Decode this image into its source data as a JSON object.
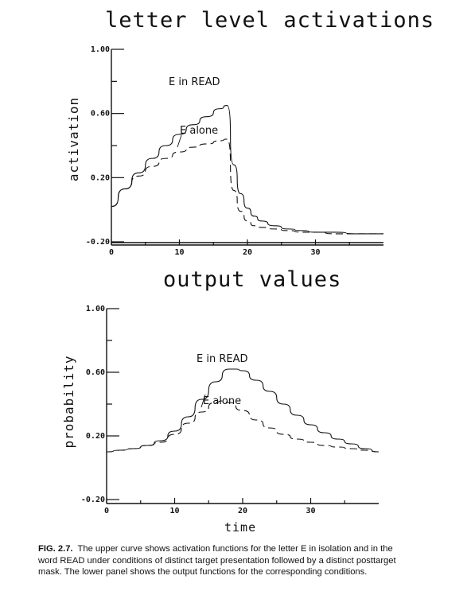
{
  "chart_data": [
    {
      "type": "line",
      "title": "letter level activations",
      "ylabel": "activation",
      "xlabel": "",
      "ylim": [
        -0.2,
        1.0
      ],
      "xlim": [
        0,
        40
      ],
      "yticks": [
        -0.2,
        0.2,
        0.6,
        1.0
      ],
      "ytick_labels": [
        "-0.20",
        "0.20",
        "0.60",
        "1.00"
      ],
      "xticks": [
        0,
        10,
        20,
        30
      ],
      "xtick_labels": [
        "0",
        "10",
        "20",
        "30"
      ],
      "series": [
        {
          "name": "E in READ",
          "style": "solid",
          "x": [
            0,
            2,
            4,
            6,
            8,
            10,
            12,
            14,
            16,
            17,
            18,
            19,
            20,
            21,
            22,
            24,
            26,
            28,
            30,
            33,
            36,
            40
          ],
          "y": [
            0.02,
            0.13,
            0.23,
            0.32,
            0.4,
            0.47,
            0.53,
            0.58,
            0.63,
            0.65,
            0.28,
            0.1,
            0.01,
            -0.04,
            -0.07,
            -0.1,
            -0.12,
            -0.13,
            -0.14,
            -0.14,
            -0.15,
            -0.15
          ]
        },
        {
          "name": "E alone",
          "style": "dashed",
          "x": [
            0,
            2,
            4,
            6,
            8,
            10,
            12,
            14,
            16,
            17,
            18,
            19,
            20,
            21,
            22,
            24,
            26,
            28,
            30,
            33,
            36,
            40
          ],
          "y": [
            0.02,
            0.13,
            0.21,
            0.27,
            0.32,
            0.36,
            0.39,
            0.41,
            0.43,
            0.44,
            0.12,
            -0.01,
            -0.07,
            -0.1,
            -0.11,
            -0.12,
            -0.13,
            -0.14,
            -0.14,
            -0.15,
            -0.15,
            -0.15
          ]
        }
      ]
    },
    {
      "type": "line",
      "title": "output values",
      "ylabel": "probability",
      "xlabel": "time",
      "ylim": [
        -0.2,
        1.0
      ],
      "xlim": [
        0,
        40
      ],
      "yticks": [
        -0.2,
        0.2,
        0.6,
        1.0
      ],
      "ytick_labels": [
        "-0.20",
        "0.20",
        "0.60",
        "1.00"
      ],
      "xticks": [
        0,
        10,
        20,
        30
      ],
      "xtick_labels": [
        "0",
        "10",
        "20",
        "30"
      ],
      "series": [
        {
          "name": "E in READ",
          "style": "solid",
          "x": [
            0,
            2,
            4,
            6,
            8,
            10,
            12,
            14,
            16,
            18,
            19,
            20,
            22,
            24,
            26,
            28,
            30,
            32,
            34,
            36,
            38,
            40
          ],
          "y": [
            0.1,
            0.11,
            0.12,
            0.14,
            0.17,
            0.23,
            0.32,
            0.43,
            0.54,
            0.62,
            0.62,
            0.61,
            0.55,
            0.48,
            0.4,
            0.33,
            0.27,
            0.22,
            0.18,
            0.15,
            0.12,
            0.1
          ]
        },
        {
          "name": "E alone",
          "style": "dashed",
          "x": [
            0,
            2,
            4,
            6,
            8,
            10,
            12,
            14,
            16,
            17,
            18,
            20,
            22,
            24,
            26,
            28,
            30,
            32,
            34,
            36,
            38,
            40
          ],
          "y": [
            0.1,
            0.11,
            0.12,
            0.14,
            0.16,
            0.21,
            0.28,
            0.35,
            0.41,
            0.42,
            0.41,
            0.36,
            0.3,
            0.25,
            0.21,
            0.18,
            0.16,
            0.14,
            0.13,
            0.12,
            0.11,
            0.1
          ]
        }
      ]
    }
  ],
  "caption": {
    "label": "FIG. 2.7.",
    "text": "The upper curve shows activation functions for the letter E in isolation and in the word READ under conditions of distinct target presentation followed by a distinct posttarget mask. The lower panel shows the output functions for the corresponding conditions."
  }
}
